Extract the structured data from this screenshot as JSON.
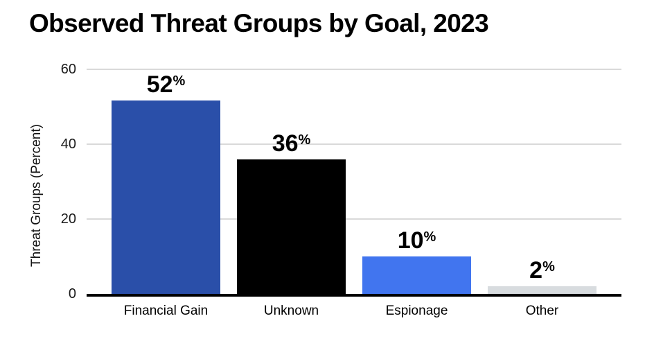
{
  "title": "Observed Threat Groups by Goal, 2023",
  "chart_data": {
    "type": "bar",
    "title": "Observed Threat Groups by Goal, 2023",
    "categories": [
      "Financial Gain",
      "Unknown",
      "Espionage",
      "Other"
    ],
    "values": [
      52,
      36,
      10,
      2
    ],
    "value_suffix": "%",
    "bar_colors": [
      "#2a4fa9",
      "#000000",
      "#4175ef",
      "#d8dcdf"
    ],
    "xlabel": "",
    "ylabel": "Threat Groups (Percent)",
    "ylim": [
      0,
      60
    ],
    "yticks": [
      0,
      20,
      40,
      60
    ],
    "grid": "horizontal-gridlines-at-20-40-60",
    "legend": "none",
    "colors": {
      "gridline": "#d9d9d9",
      "axis_line": "#000000",
      "background": "#ffffff",
      "text": "#000000"
    }
  }
}
